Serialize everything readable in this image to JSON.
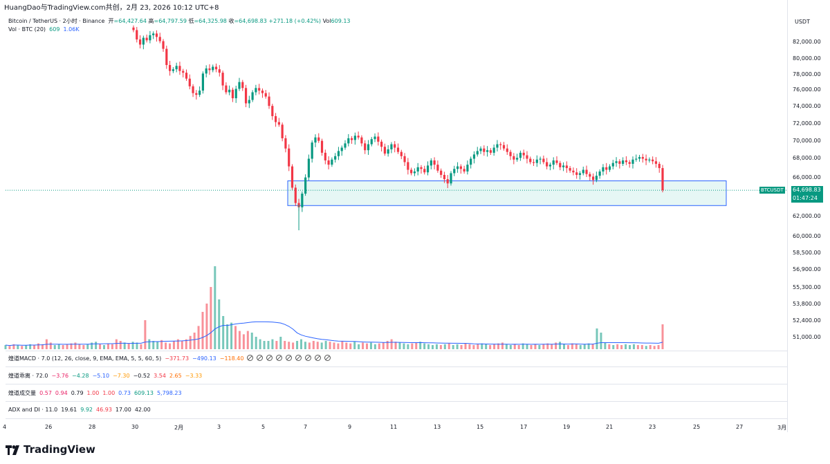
{
  "header": {
    "title": "HuangDao与TradingView.com共创，2月 23, 2026 10:12 UTC+8"
  },
  "symbol_line": {
    "name": "Bitcoin / TetherUS · 2小时 · Binance",
    "open_label": "开",
    "open": "=64,427.64",
    "high_label": "高",
    "high": "=64,797.59",
    "low_label": "低",
    "low": "=64,325.98",
    "close_label": "收",
    "close": "=64,698.83",
    "change": "+271.18 (+0.42%)",
    "vol_label": "Vol",
    "vol": "609.13"
  },
  "vol_line": {
    "label": "Vol · BTC (20)",
    "v1": "609",
    "v2": "1.06K"
  },
  "indicators": [
    {
      "name": "煌道MACD · 7.0 (12, 26, close, 9, EMA, EMA, 5, 5, 60, 5)",
      "values": [
        {
          "t": "−371.73",
          "c": "#f23645"
        },
        {
          "t": "−490.13",
          "c": "#2962ff"
        },
        {
          "t": "−118.40",
          "c": "#ff6d00"
        }
      ],
      "circles": 9
    },
    {
      "name": "煌道乖离 · 72.0",
      "values": [
        {
          "t": "−3.76",
          "c": "#e91e63"
        },
        {
          "t": "−4.28",
          "c": "#089981"
        },
        {
          "t": "−5.10",
          "c": "#2962ff"
        },
        {
          "t": "−7.30",
          "c": "#ff9800"
        },
        {
          "t": "−0.52",
          "c": "#131722"
        },
        {
          "t": "3.54",
          "c": "#f23645"
        },
        {
          "t": "2.65",
          "c": "#ff6d00"
        },
        {
          "t": "−3.33",
          "c": "#ff9800"
        }
      ],
      "circles": 0
    },
    {
      "name": "煌道成交量",
      "values": [
        {
          "t": "0.57",
          "c": "#e91e63"
        },
        {
          "t": "0.94",
          "c": "#e91e63"
        },
        {
          "t": "0.79",
          "c": "#131722"
        },
        {
          "t": "1.00",
          "c": "#f23645"
        },
        {
          "t": "1.00",
          "c": "#f23645"
        },
        {
          "t": "0.73",
          "c": "#2962ff"
        },
        {
          "t": "609.13",
          "c": "#089981"
        },
        {
          "t": "5,798.23",
          "c": "#2962ff"
        }
      ],
      "circles": 0
    },
    {
      "name": "ADX and DI · 11.0",
      "values": [
        {
          "t": "19.61",
          "c": "#131722"
        },
        {
          "t": "9.92",
          "c": "#089981"
        },
        {
          "t": "46.93",
          "c": "#f23645"
        },
        {
          "t": "17.00",
          "c": "#131722"
        },
        {
          "t": "42.00",
          "c": "#131722"
        }
      ],
      "circles": 0
    }
  ],
  "price_axis": {
    "unit": "USDT",
    "labels": [
      "82,000.00",
      "80,000.00",
      "78,000.00",
      "76,000.00",
      "74,000.00",
      "72,000.00",
      "70,000.00",
      "68,000.00",
      "66,000.00",
      "62,000.00",
      "60,000.00",
      "58,500.00",
      "56,900.00",
      "55,300.00",
      "53,800.00",
      "52,400.00",
      "51,000.00"
    ],
    "current_symbol": "BTCUSDT",
    "current_price": "64,698.83",
    "countdown": "01:47:24"
  },
  "time_axis": {
    "labels": [
      "4",
      "26",
      "28",
      "30",
      "2月",
      "3",
      "5",
      "7",
      "9",
      "11",
      "13",
      "15",
      "17",
      "19",
      "21",
      "23",
      "25",
      "27",
      "3月"
    ]
  },
  "colors": {
    "up": "#089981",
    "down": "#f23645",
    "box_border": "#2962ff",
    "box_fill": "#e6f7f5",
    "volume_ma": "#2962ff"
  },
  "logo": {
    "text": "TradingView"
  },
  "chart_data": {
    "type": "candlestick",
    "title": "Bitcoin / TetherUS · 2小时 · Binance",
    "ylim": [
      60000,
      83500
    ],
    "support_zone": {
      "from": 62900,
      "to": 65800,
      "start": "2月 5",
      "end": "2月 26"
    },
    "last_price": 64698.83,
    "closes": [
      83500,
      82400,
      81800,
      82600,
      82300,
      82900,
      83100,
      82700,
      82200,
      81300,
      79400,
      78700,
      78900,
      79300,
      78700,
      78500,
      77800,
      76900,
      76100,
      75900,
      76400,
      78400,
      79000,
      78800,
      79200,
      78900,
      78500,
      77000,
      76200,
      76500,
      75500,
      76600,
      77400,
      76700,
      74900,
      75300,
      76200,
      76700,
      76400,
      76100,
      75700,
      74600,
      73400,
      72700,
      72400,
      70800,
      69600,
      67500,
      65000,
      63200,
      62700,
      64300,
      66200,
      68400,
      70300,
      70900,
      70500,
      69100,
      68200,
      67700,
      68300,
      68700,
      69300,
      69700,
      70200,
      70800,
      70600,
      71100,
      70900,
      70200,
      69400,
      70100,
      70700,
      71000,
      70400,
      69800,
      69000,
      69500,
      70100,
      69700,
      69200,
      68700,
      68000,
      67100,
      66700,
      66900,
      67400,
      67200,
      66800,
      67600,
      68200,
      67700,
      67000,
      66500,
      66000,
      65500,
      66700,
      67200,
      67500,
      67200,
      66900,
      67700,
      68400,
      68900,
      69300,
      69600,
      69200,
      69400,
      69100,
      69700,
      70100,
      70000,
      69600,
      69200,
      68700,
      68300,
      68500,
      69100,
      68800,
      68400,
      68000,
      67900,
      68300,
      68400,
      68000,
      67500,
      67700,
      68200,
      67900,
      67400,
      67600,
      67300,
      67000,
      66800,
      66500,
      66700,
      67100,
      66600,
      66300,
      65900,
      66400,
      66900,
      67400,
      67100,
      67500,
      67900,
      68100,
      67800,
      68200,
      68000,
      67800,
      68300,
      68400,
      68600,
      68400,
      68200,
      68300,
      68100,
      67800,
      67300,
      64700
    ],
    "volume": [
      0.05,
      0.04,
      0.06,
      0.05,
      0.04,
      0.05,
      0.06,
      0.05,
      0.07,
      0.06,
      0.12,
      0.08,
      0.05,
      0.06,
      0.05,
      0.06,
      0.07,
      0.08,
      0.06,
      0.05,
      0.06,
      0.08,
      0.09,
      0.06,
      0.05,
      0.07,
      0.06,
      0.12,
      0.1,
      0.08,
      0.07,
      0.09,
      0.08,
      0.06,
      0.35,
      0.12,
      0.1,
      0.09,
      0.11,
      0.08,
      0.07,
      0.1,
      0.12,
      0.1,
      0.12,
      0.16,
      0.2,
      0.28,
      0.45,
      0.55,
      0.75,
      1.0,
      0.6,
      0.4,
      0.3,
      0.32,
      0.28,
      0.22,
      0.18,
      0.22,
      0.2,
      0.15,
      0.12,
      0.1,
      0.1,
      0.12,
      0.1,
      0.15,
      0.1,
      0.09,
      0.08,
      0.1,
      0.12,
      0.09,
      0.08,
      0.1,
      0.09,
      0.08,
      0.1,
      0.09,
      0.08,
      0.07,
      0.1,
      0.08,
      0.07,
      0.09,
      0.06,
      0.08,
      0.07,
      0.08,
      0.06,
      0.07,
      0.08,
      0.1,
      0.12,
      0.09,
      0.08,
      0.07,
      0.06,
      0.07,
      0.08,
      0.09,
      0.07,
      0.06,
      0.05,
      0.06,
      0.05,
      0.06,
      0.07,
      0.05,
      0.06,
      0.05,
      0.07,
      0.06,
      0.05,
      0.06,
      0.07,
      0.06,
      0.05,
      0.06,
      0.07,
      0.08,
      0.06,
      0.05,
      0.06,
      0.05,
      0.07,
      0.06,
      0.05,
      0.06,
      0.05,
      0.06,
      0.07,
      0.06,
      0.08,
      0.09,
      0.06,
      0.05,
      0.07,
      0.06,
      0.05,
      0.06,
      0.07,
      0.06,
      0.25,
      0.2,
      0.08,
      0.06,
      0.05,
      0.06,
      0.05,
      0.06,
      0.05,
      0.06,
      0.05,
      0.05,
      0.04,
      0.05,
      0.04,
      0.05,
      0.3
    ]
  }
}
